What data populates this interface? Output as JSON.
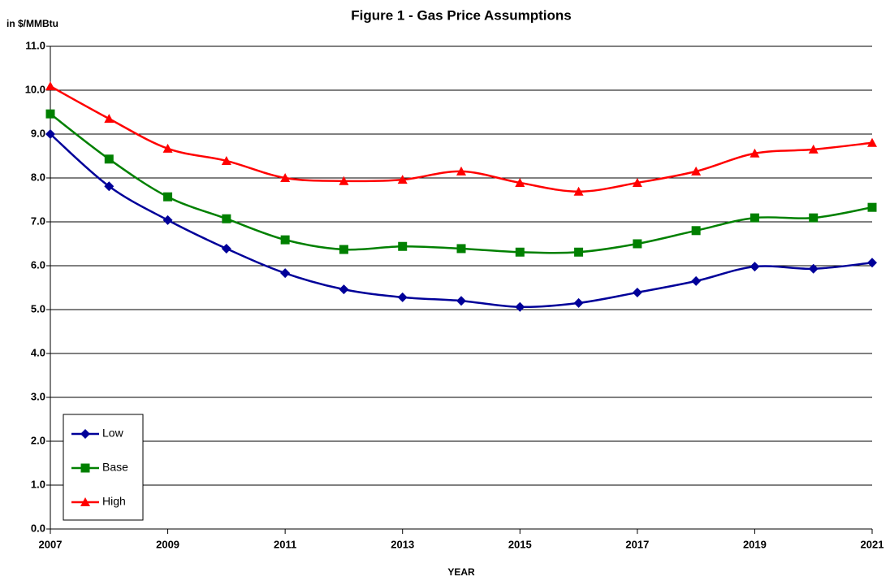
{
  "chart_data": {
    "type": "line",
    "title": "Figure 1 - Gas Price Assumptions",
    "y_label": "in $/MMBtu",
    "x_label": "YEAR",
    "x": [
      2007,
      2008,
      2009,
      2010,
      2011,
      2012,
      2013,
      2014,
      2015,
      2016,
      2017,
      2018,
      2019,
      2020,
      2021
    ],
    "series": [
      {
        "name": "Low",
        "color": "#000099",
        "marker": "diamond",
        "values": [
          9.0,
          7.81,
          7.04,
          6.39,
          5.83,
          5.46,
          5.28,
          5.2,
          5.06,
          5.15,
          5.39,
          5.65,
          5.98,
          5.93,
          6.07
        ]
      },
      {
        "name": "Base",
        "color": "#008000",
        "marker": "square",
        "values": [
          9.46,
          8.43,
          7.57,
          7.07,
          6.59,
          6.37,
          6.44,
          6.39,
          6.31,
          6.31,
          6.5,
          6.8,
          7.09,
          7.09,
          7.33
        ]
      },
      {
        "name": "High",
        "color": "#ff0000",
        "marker": "triangle",
        "values": [
          10.09,
          9.35,
          8.67,
          8.39,
          8.0,
          7.93,
          7.96,
          8.15,
          7.89,
          7.69,
          7.89,
          8.15,
          8.56,
          8.65,
          8.8
        ]
      }
    ],
    "xlim": [
      2007,
      2021
    ],
    "xticks": [
      2007,
      2009,
      2011,
      2013,
      2015,
      2017,
      2019,
      2021
    ],
    "ylim": [
      0,
      11
    ],
    "yticks": [
      {
        "value": 0,
        "label": "0.0"
      },
      {
        "value": 1,
        "label": "1.0"
      },
      {
        "value": 2,
        "label": "2.0"
      },
      {
        "value": 3,
        "label": "3.0"
      },
      {
        "value": 4,
        "label": "4.0"
      },
      {
        "value": 5,
        "label": "5.0"
      },
      {
        "value": 6,
        "label": "6.0"
      },
      {
        "value": 7,
        "label": "7.0"
      },
      {
        "value": 8,
        "label": "8.0"
      },
      {
        "value": 9,
        "label": "9.0"
      },
      {
        "value": 10,
        "label": "10.0"
      },
      {
        "value": 11,
        "label": "11.0"
      }
    ],
    "grid": true,
    "legend": "lower left"
  }
}
